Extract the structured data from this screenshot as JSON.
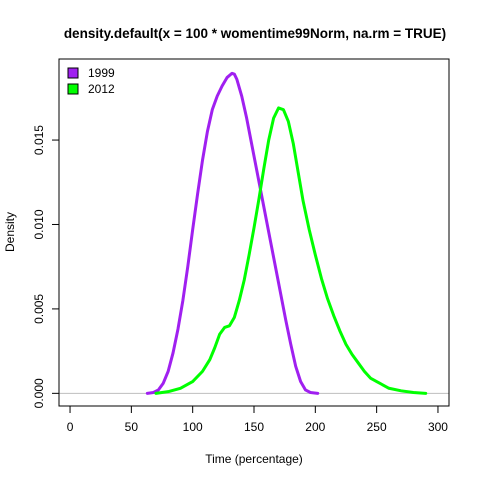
{
  "chart_data": {
    "type": "line",
    "title": "density.default(x = 100 * womentime99Norm, na.rm = TRUE)",
    "xlabel": "Time (percentage)",
    "ylabel": "Density",
    "xlim": [
      -9,
      309
    ],
    "ylim": [
      -0.00075,
      0.0198
    ],
    "x_ticks": [
      0,
      50,
      100,
      150,
      200,
      250,
      300
    ],
    "x_tick_labels": [
      "0",
      "50",
      "100",
      "150",
      "200",
      "250",
      "300"
    ],
    "y_ticks": [
      0.0,
      0.005,
      0.01,
      0.015
    ],
    "y_tick_labels": [
      "0.000",
      "0.005",
      "0.010",
      "0.015"
    ],
    "grid": false,
    "legend_position": "top-left",
    "series": [
      {
        "name": "1999",
        "color": "#a020f0",
        "x": [
          63,
          68,
          72,
          76,
          80,
          84,
          88,
          92,
          96,
          100,
          104,
          108,
          112,
          116,
          120,
          124,
          128,
          132,
          134,
          136,
          140,
          144,
          148,
          152,
          156,
          160,
          164,
          168,
          172,
          176,
          180,
          184,
          188,
          192,
          196,
          202
        ],
        "y": [
          0.0,
          5e-05,
          0.0002,
          0.0006,
          0.0013,
          0.0024,
          0.0038,
          0.0055,
          0.0075,
          0.0097,
          0.0118,
          0.0138,
          0.0155,
          0.0168,
          0.0176,
          0.0182,
          0.0187,
          0.01895,
          0.0189,
          0.0186,
          0.0176,
          0.0163,
          0.0148,
          0.0133,
          0.0118,
          0.0103,
          0.0088,
          0.0073,
          0.0058,
          0.0043,
          0.0029,
          0.0016,
          0.0007,
          0.0002,
          5e-05,
          0.0
        ]
      },
      {
        "name": "2012",
        "color": "#00ff00",
        "x": [
          70,
          80,
          90,
          100,
          108,
          114,
          118,
          122,
          126,
          130,
          134,
          138,
          142,
          146,
          150,
          154,
          158,
          162,
          166,
          170,
          174,
          178,
          182,
          186,
          190,
          195,
          200,
          205,
          210,
          215,
          220,
          225,
          230,
          235,
          240,
          245,
          250,
          255,
          260,
          270,
          280,
          290
        ],
        "y": [
          0.0,
          0.0001,
          0.0003,
          0.0007,
          0.0013,
          0.002,
          0.0027,
          0.0035,
          0.0039,
          0.004,
          0.0045,
          0.0055,
          0.0067,
          0.0082,
          0.0098,
          0.0115,
          0.0133,
          0.015,
          0.0163,
          0.0169,
          0.0168,
          0.0161,
          0.0148,
          0.0131,
          0.0114,
          0.0097,
          0.0082,
          0.0068,
          0.0056,
          0.0046,
          0.0037,
          0.0029,
          0.0023,
          0.0018,
          0.0013,
          0.0009,
          0.0007,
          0.0005,
          0.0003,
          0.00015,
          5e-05,
          0.0
        ]
      }
    ]
  }
}
